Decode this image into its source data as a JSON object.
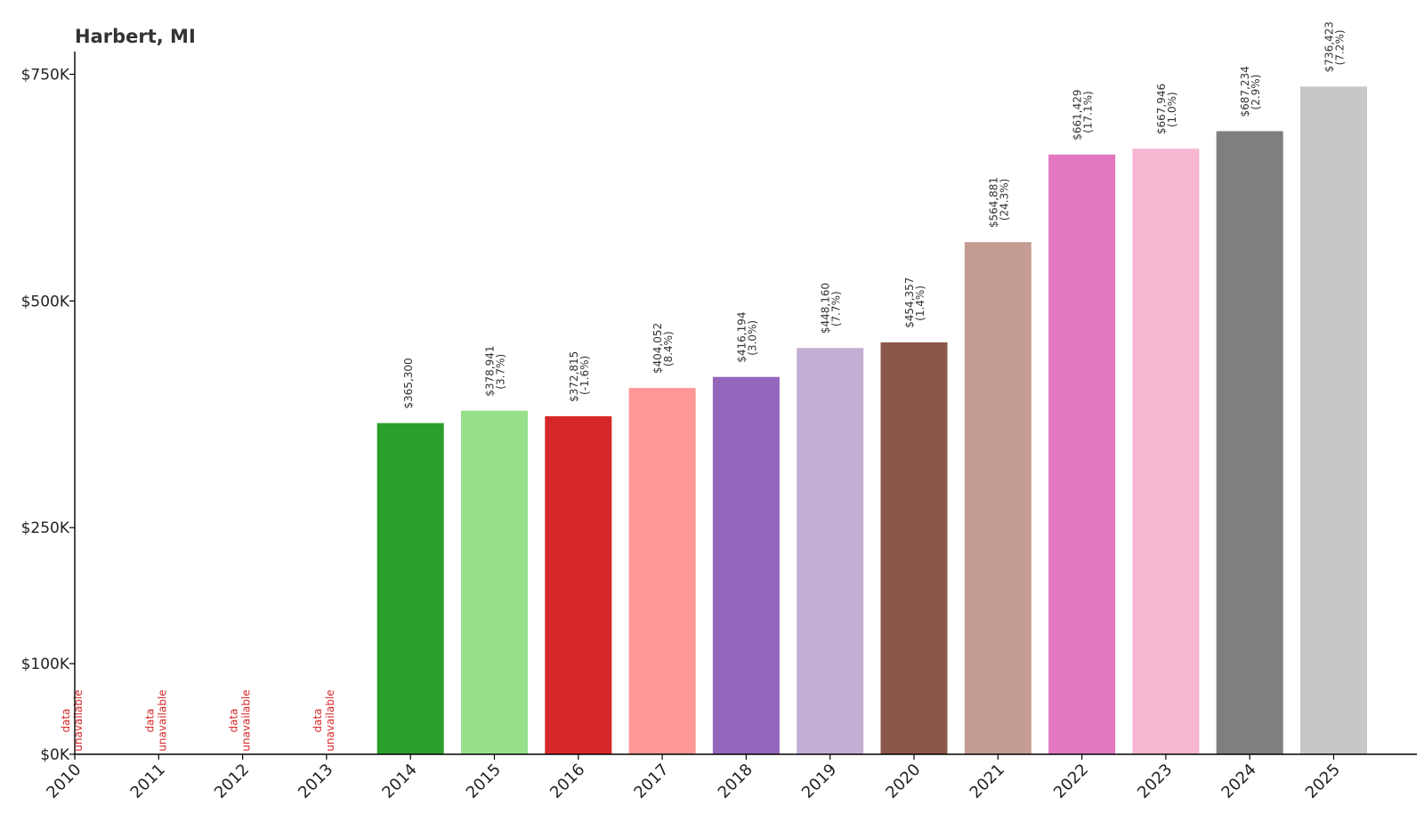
{
  "chart_data": {
    "type": "bar",
    "title": "Harbert, MI",
    "xlabel": "",
    "ylabel": "",
    "ylim": [
      0,
      775000
    ],
    "yticks": [
      {
        "value": 0,
        "label": "$0K"
      },
      {
        "value": 100000,
        "label": "$100K"
      },
      {
        "value": 250000,
        "label": "$250K"
      },
      {
        "value": 500000,
        "label": "$500K"
      },
      {
        "value": 750000,
        "label": "$750K"
      }
    ],
    "categories": [
      "2010",
      "2011",
      "2012",
      "2013",
      "2014",
      "2015",
      "2016",
      "2017",
      "2018",
      "2019",
      "2020",
      "2021",
      "2022",
      "2023",
      "2024",
      "2025"
    ],
    "values": [
      null,
      null,
      null,
      null,
      365300,
      378941,
      372815,
      404052,
      416194,
      448160,
      454357,
      564881,
      661429,
      667946,
      687234,
      736423
    ],
    "value_labels": [
      null,
      null,
      null,
      null,
      "$365,300",
      "$378,941",
      "$372,815",
      "$404,052",
      "$416,194",
      "$448,160",
      "$454,357",
      "$564,881",
      "$661,429",
      "$667,946",
      "$687,234",
      "$736,423"
    ],
    "change_labels": [
      null,
      null,
      null,
      null,
      null,
      "(3.7%)",
      "(-1.6%)",
      "(8.4%)",
      "(3.0%)",
      "(7.7%)",
      "(1.4%)",
      "(24.3%)",
      "(17.1%)",
      "(1.0%)",
      "(2.9%)",
      "(7.2%)"
    ],
    "unavailable_line1": "data",
    "unavailable_line2": "unavailable",
    "colors": [
      "#1f77b4",
      "#ff7f0e",
      "#2ca02c",
      "#d62728",
      "#2ca02c",
      "#98df8a",
      "#d62728",
      "#ff9896",
      "#9467bd",
      "#c5b0d5",
      "#8c564b",
      "#c49c94",
      "#e377c2",
      "#f7b6d2",
      "#7f7f7f",
      "#c7c7c7"
    ],
    "unavailable_color": "#d62728",
    "grid": false,
    "legend": "none"
  }
}
